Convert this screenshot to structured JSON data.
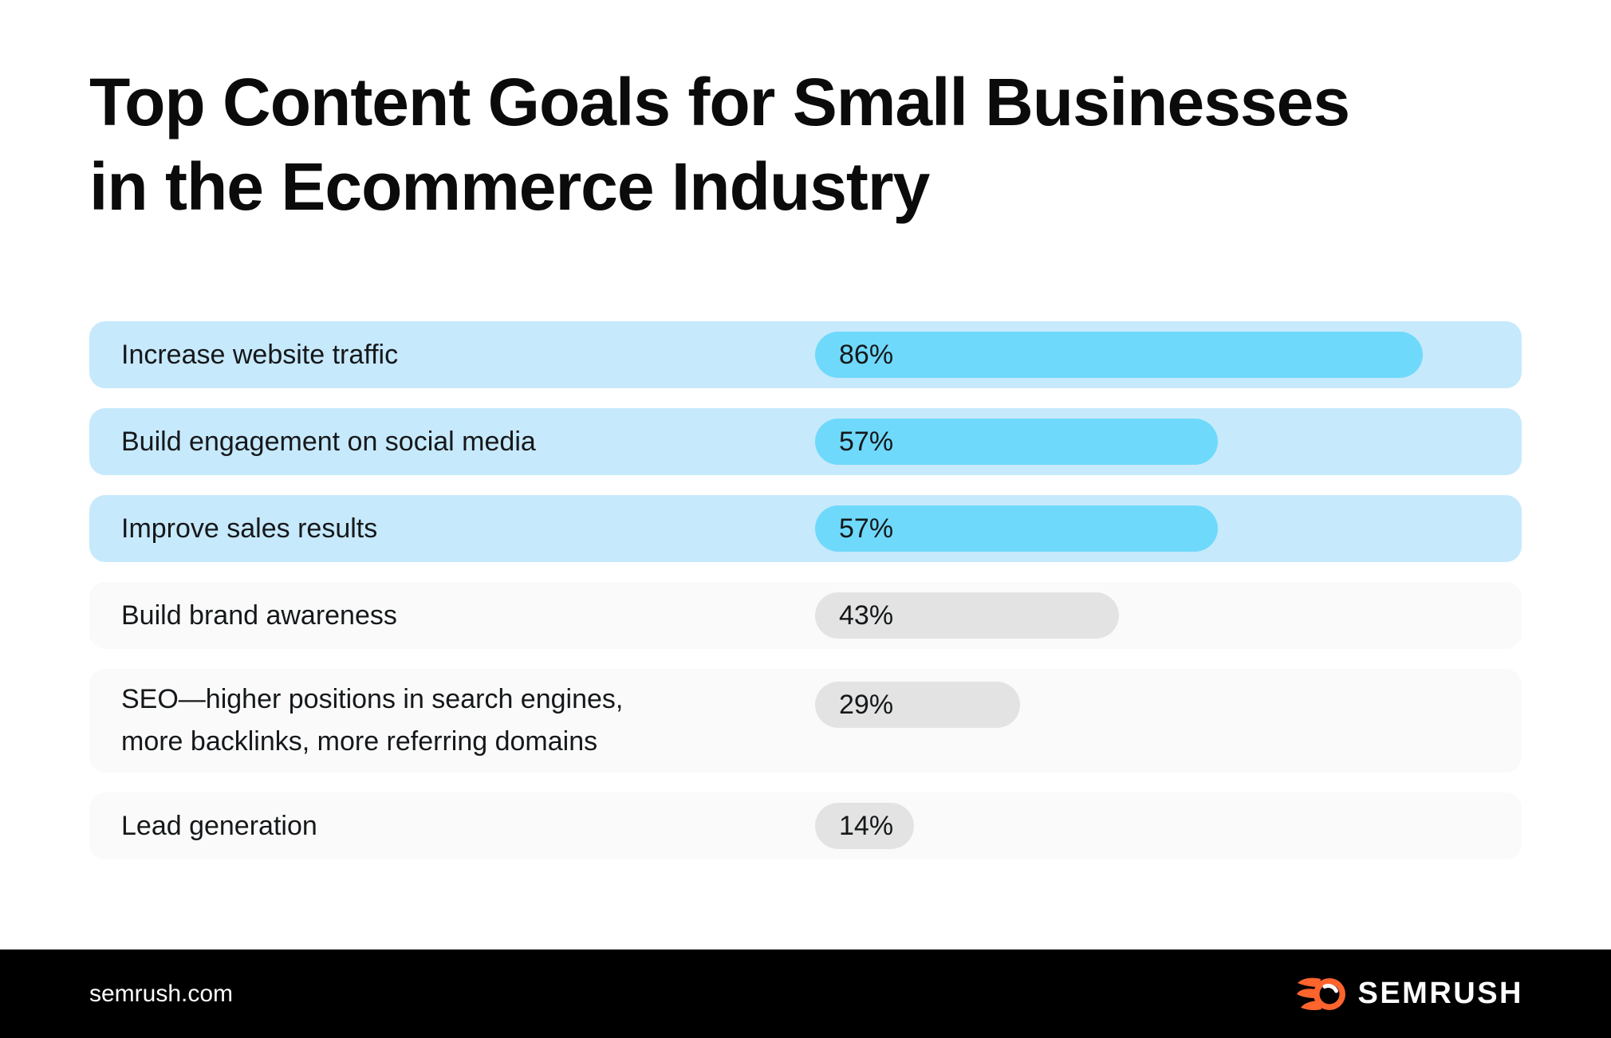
{
  "title": {
    "line1": "Top Content Goals for Small Businesses",
    "line2": "in the Ecommerce Industry"
  },
  "rows": [
    {
      "label": "Increase website traffic",
      "value": 86,
      "value_label": "86%",
      "highlighted": true,
      "two_line": false
    },
    {
      "label": "Build engagement on social media",
      "value": 57,
      "value_label": "57%",
      "highlighted": true,
      "two_line": false
    },
    {
      "label": "Improve sales results",
      "value": 57,
      "value_label": "57%",
      "highlighted": true,
      "two_line": false
    },
    {
      "label": "Build brand awareness",
      "value": 43,
      "value_label": "43%",
      "highlighted": false,
      "two_line": false
    },
    {
      "label": "SEO—higher positions in search engines, more backlinks, more referring domains",
      "value": 29,
      "value_label": "29%",
      "highlighted": false,
      "two_line": true
    },
    {
      "label": "Lead generation",
      "value": 14,
      "value_label": "14%",
      "highlighted": false,
      "two_line": false
    }
  ],
  "chart_data": {
    "type": "bar",
    "orientation": "horizontal",
    "title": "Top Content Goals for Small Businesses in the Ecommerce Industry",
    "categories": [
      "Increase website traffic",
      "Build engagement on social media",
      "Improve sales results",
      "Build brand awareness",
      "SEO—higher positions in search engines, more backlinks, more referring domains",
      "Lead generation"
    ],
    "values": [
      86,
      57,
      57,
      43,
      29,
      14
    ],
    "value_labels": [
      "86%",
      "57%",
      "57%",
      "43%",
      "29%",
      "14%"
    ],
    "highlighted": [
      true,
      true,
      true,
      false,
      false,
      false
    ],
    "xlabel": "",
    "ylabel": "",
    "xlim": [
      0,
      100
    ],
    "grid": false,
    "legend": false,
    "colors": {
      "highlight_bar": "#6FD9FB",
      "highlight_row_bg": "#C7E9FC",
      "muted_bar": "#E3E3E3",
      "muted_row_bg": "#FAFAFA"
    }
  },
  "footer": {
    "website": "semrush.com",
    "brand": "SEMRUSH",
    "brand_color": "#FF642D",
    "footer_bg": "#000000"
  }
}
